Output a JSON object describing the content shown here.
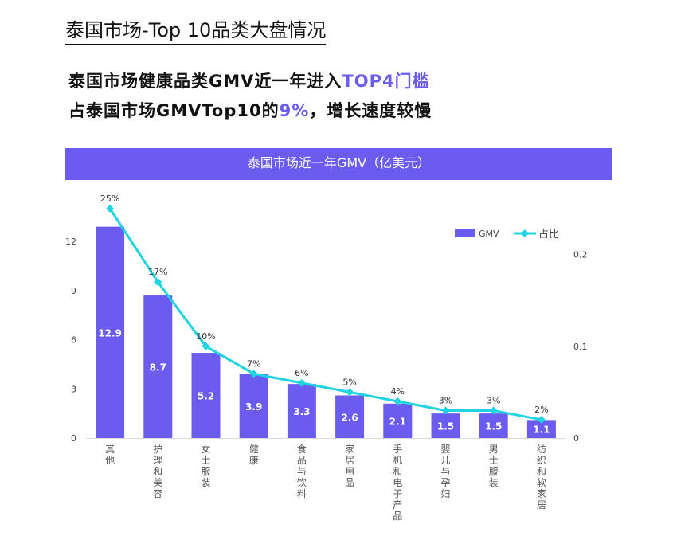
{
  "header": {
    "title": "泰国市场-Top 10品类大盘情况",
    "line1_pre": "泰国市场健康品类GMV近一年进入",
    "line1_hl": "TOP4门槛",
    "line2_pre": "占泰国市场GMVTop10的",
    "line2_hl": "9%",
    "line2_post": "，增长速度较慢"
  },
  "colors": {
    "accent": "#6b5cf0",
    "bar": "#6b5cf0",
    "line": "#1fd3e0"
  },
  "chart_data": {
    "type": "bar+line",
    "title": "泰国市场近一年GMV（亿美元）",
    "categories": [
      "其他",
      "护理和美容",
      "女士服装",
      "健康",
      "食品与饮料",
      "家居用品",
      "手机和电子产品",
      "婴儿与孕妇",
      "男士服装",
      "纺织和软家居"
    ],
    "series": [
      {
        "name": "GMV",
        "type": "bar",
        "axis": "left",
        "values": [
          12.9,
          8.7,
          5.2,
          3.9,
          3.3,
          2.6,
          2.1,
          1.5,
          1.5,
          1.1
        ],
        "labels": [
          "12.9",
          "8.7",
          "5.2",
          "3.9",
          "3.3",
          "2.6",
          "2.1",
          "1.5",
          "1.5",
          "1.1"
        ]
      },
      {
        "name": "占比",
        "type": "line",
        "axis": "right",
        "values": [
          0.25,
          0.17,
          0.1,
          0.07,
          0.06,
          0.05,
          0.04,
          0.03,
          0.03,
          0.02
        ],
        "labels": [
          "25%",
          "17%",
          "10%",
          "7%",
          "6%",
          "5%",
          "4%",
          "3%",
          "3%",
          "2%"
        ]
      }
    ],
    "left_axis": {
      "ticks": [
        "0",
        "3",
        "6",
        "9",
        "12"
      ],
      "tick_values": [
        0,
        3,
        6,
        9,
        12
      ],
      "range": [
        0,
        14
      ]
    },
    "right_axis": {
      "ticks": [
        "0",
        "0.1",
        "0.2"
      ],
      "tick_values": [
        0,
        0.1,
        0.2
      ],
      "range": [
        0,
        0.25
      ]
    },
    "legend": "top-right",
    "grid": false
  }
}
